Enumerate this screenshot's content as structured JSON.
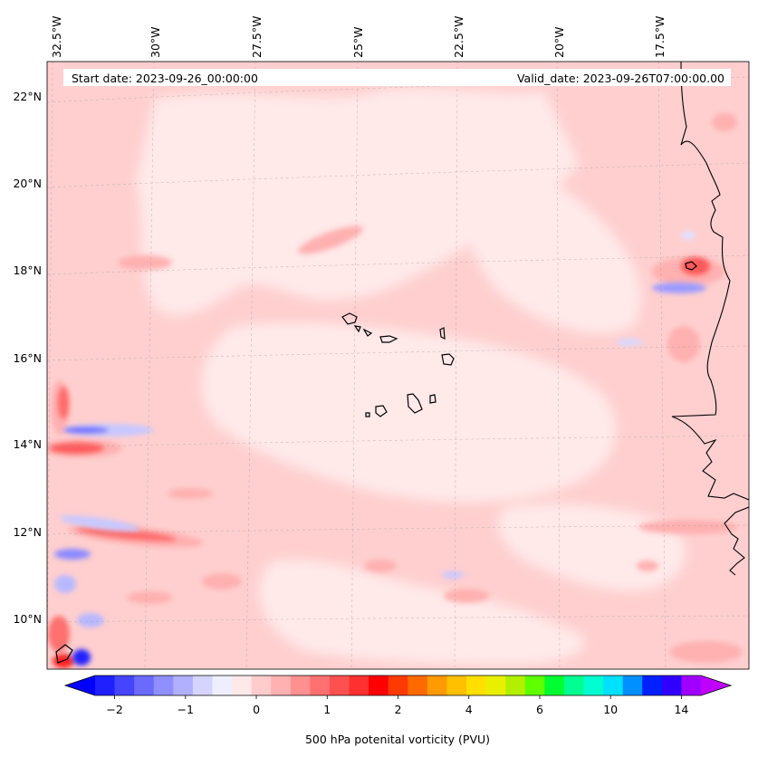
{
  "header": {
    "start_date": "Start date: 2023-09-26_00:00:00",
    "valid_date": "Valid_date: 2023-09-26T07:00:00.00"
  },
  "map": {
    "lon_labels": [
      "32.5°W",
      "30°W",
      "27.5°W",
      "25°W",
      "22.5°W",
      "20°W",
      "17.5°W"
    ],
    "lat_labels": [
      "22°N",
      "20°N",
      "18°N",
      "16°N",
      "14°N",
      "12°N",
      "10°N"
    ],
    "gridlines": true,
    "gridline_style": "dashed",
    "features": [
      "coastline-africa",
      "cape-verde-islands"
    ]
  },
  "colorbar": {
    "label": "500 hPa potenital vorticity (PVU)",
    "tick_labels": [
      "−2",
      "−1",
      "0",
      "1",
      "2",
      "4",
      "6",
      "10",
      "14"
    ],
    "extend": "both",
    "colors": [
      "#0000ff",
      "#2020ff",
      "#4545ff",
      "#6a6aff",
      "#8f8fff",
      "#b0b0ff",
      "#d4d4ff",
      "#eeeeff",
      "#ffe8e8",
      "#ffcccc",
      "#ffb0b0",
      "#ff9090",
      "#ff7070",
      "#ff5050",
      "#ff3030",
      "#ff0000",
      "#ff3a00",
      "#ff6a00",
      "#ff9a00",
      "#ffc000",
      "#ffe000",
      "#e8f000",
      "#b0f000",
      "#60ff00",
      "#00ff30",
      "#00ff90",
      "#00ffd0",
      "#00e0ff",
      "#0090ff",
      "#0020ff",
      "#3000ff",
      "#a000ff",
      "#c000ff"
    ]
  },
  "colors": {
    "background": "#ffffff",
    "field_low": "#ffe6e6",
    "field_mid": "#ffcccc",
    "field_high": "#ff8a8a",
    "negative": "#3a3aff",
    "coast": "#000000"
  }
}
